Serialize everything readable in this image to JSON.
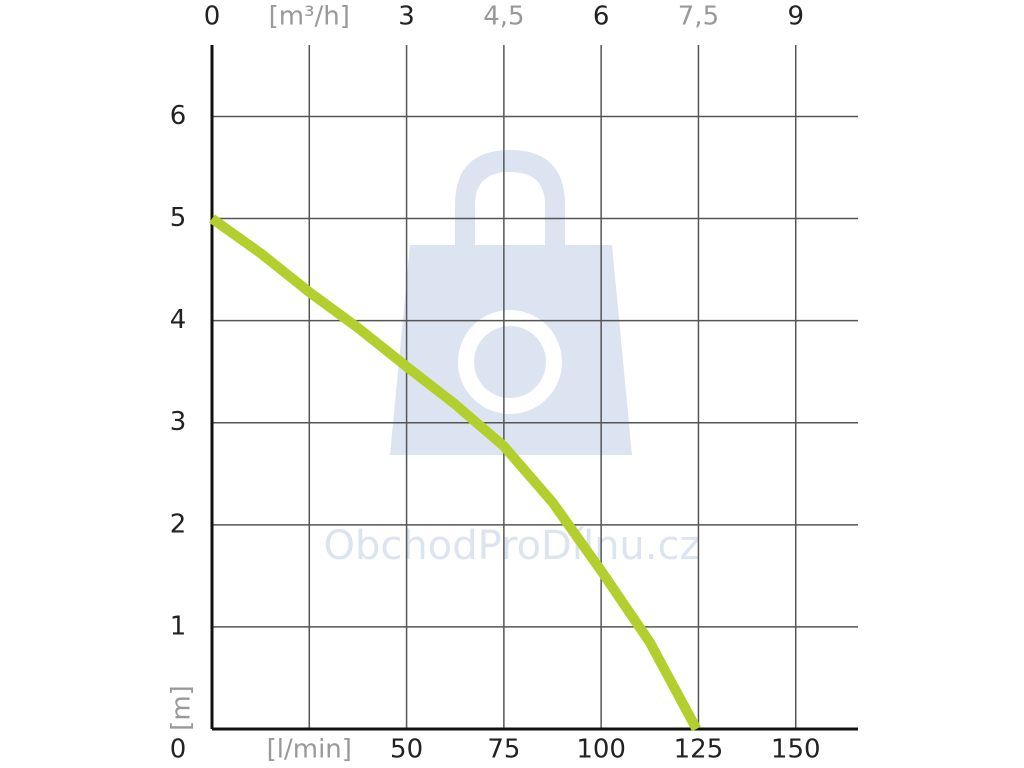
{
  "chart_data": {
    "type": "line",
    "x": [
      0,
      12.5,
      25,
      37.5,
      50,
      62.5,
      75,
      87.5,
      100,
      112.5,
      124.5
    ],
    "series": [
      {
        "color": "#b3cf2e",
        "values": [
          5,
          4.66,
          4.28,
          3.93,
          3.55,
          3.18,
          2.77,
          2.22,
          1.55,
          0.85,
          0
        ]
      }
    ],
    "xlim": [
      0,
      166
    ],
    "xticks": [
      {
        "value": 25,
        "label": "[l/min]"
      },
      50,
      75,
      100,
      125,
      150
    ],
    "x2lim": [
      0,
      9.96
    ],
    "x2ticks": [
      0,
      {
        "value": 1.5,
        "label": "[m³/h]"
      },
      3,
      {
        "value": 4.5,
        "label": "4,5"
      },
      6,
      {
        "value": 7.5,
        "label": "7,5"
      },
      9
    ],
    "ylim": [
      0,
      6.7
    ],
    "yticks": [
      0,
      1,
      2,
      3,
      4,
      5,
      6
    ],
    "y_label": "[m]",
    "watermark": "ObchodProDílnu.cz",
    "grid": true
  }
}
